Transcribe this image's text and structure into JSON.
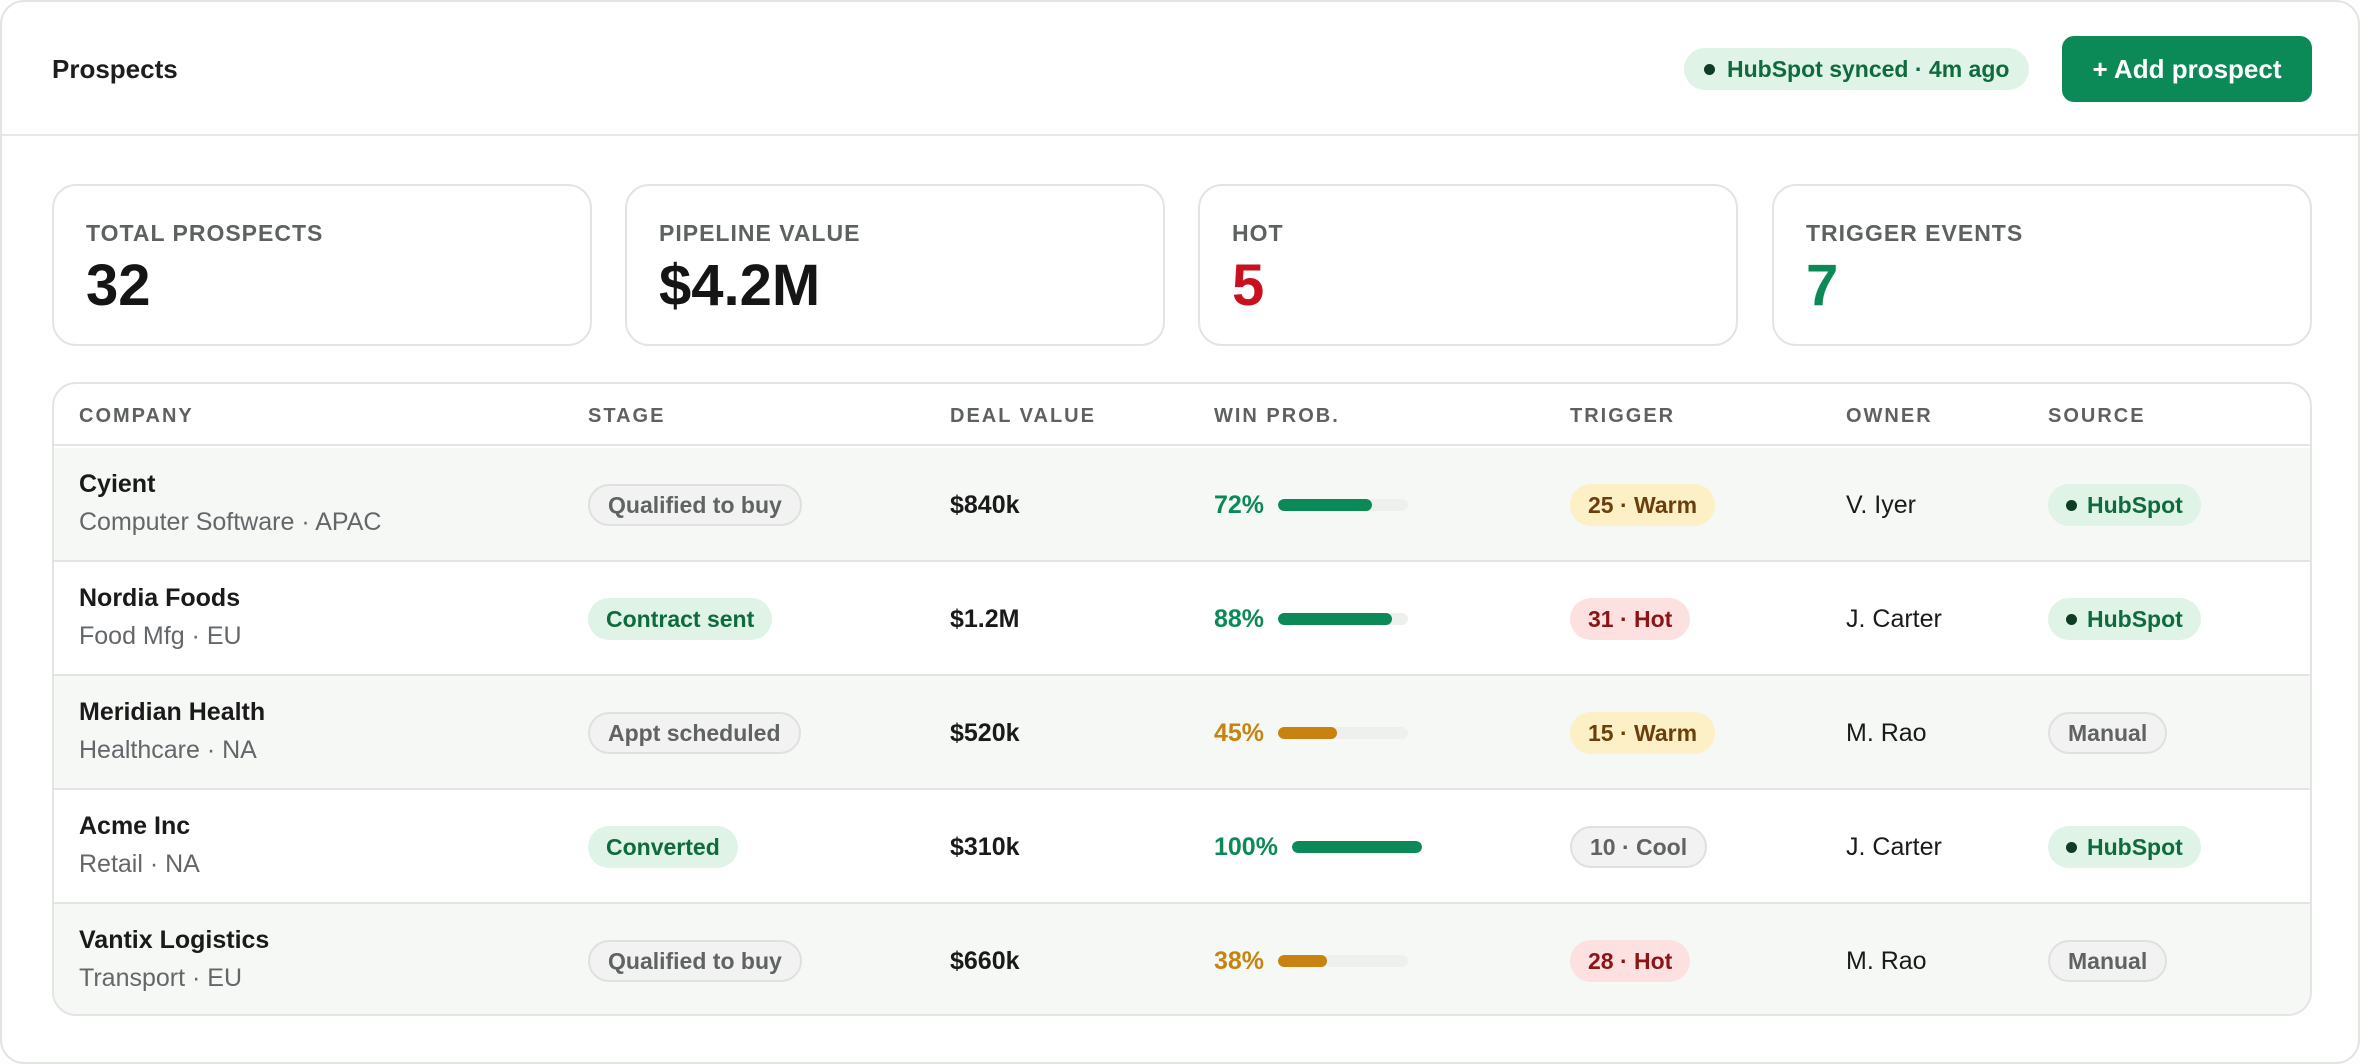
{
  "header": {
    "title": "Prospects",
    "sync_status": "HubSpot synced · 4m ago",
    "add_label": "+ Add prospect"
  },
  "stats": [
    {
      "label": "TOTAL PROSPECTS",
      "value": "32",
      "color": "#151515"
    },
    {
      "label": "PIPELINE VALUE",
      "value": "$4.2M",
      "color": "#151515"
    },
    {
      "label": "HOT",
      "value": "5",
      "color": "#c9101f"
    },
    {
      "label": "TRIGGER EVENTS",
      "value": "7",
      "color": "#0b8a57"
    }
  ],
  "table": {
    "columns": [
      "COMPANY",
      "STAGE",
      "DEAL VALUE",
      "WIN PROB.",
      "TRIGGER",
      "OWNER",
      "SOURCE"
    ],
    "rows": [
      {
        "company": "Cyient",
        "sub": "Computer Software · APAC",
        "stage": "Qualified to buy",
        "stage_style": "gray",
        "deal": "$840k",
        "prob_label": "72%",
        "prob": 0.72,
        "prob_color": "green",
        "trigger": "25 · Warm",
        "trigger_style": "warm",
        "owner": "V. Iyer",
        "source": "HubSpot",
        "source_style": "green"
      },
      {
        "company": "Nordia Foods",
        "sub": "Food Mfg · EU",
        "stage": "Contract sent",
        "stage_style": "green",
        "deal": "$1.2M",
        "prob_label": "88%",
        "prob": 0.88,
        "prob_color": "green",
        "trigger": "31 · Hot",
        "trigger_style": "hot",
        "owner": "J. Carter",
        "source": "HubSpot",
        "source_style": "green"
      },
      {
        "company": "Meridian Health",
        "sub": "Healthcare · NA",
        "stage": "Appt scheduled",
        "stage_style": "gray",
        "deal": "$520k",
        "prob_label": "45%",
        "prob": 0.45,
        "prob_color": "amber",
        "trigger": "15 · Warm",
        "trigger_style": "warm",
        "owner": "M. Rao",
        "source": "Manual",
        "source_style": "gray"
      },
      {
        "company": "Acme Inc",
        "sub": "Retail · NA",
        "stage": "Converted",
        "stage_style": "green",
        "deal": "$310k",
        "prob_label": "100%",
        "prob": 1.0,
        "prob_color": "green",
        "trigger": "10 · Cool",
        "trigger_style": "cool",
        "owner": "J. Carter",
        "source": "HubSpot",
        "source_style": "green"
      },
      {
        "company": "Vantix Logistics",
        "sub": "Transport · EU",
        "stage": "Qualified to buy",
        "stage_style": "gray",
        "deal": "$660k",
        "prob_label": "38%",
        "prob": 0.38,
        "prob_color": "amber",
        "trigger": "28 · Hot",
        "trigger_style": "hot",
        "owner": "M. Rao",
        "source": "Manual",
        "source_style": "gray"
      }
    ]
  }
}
